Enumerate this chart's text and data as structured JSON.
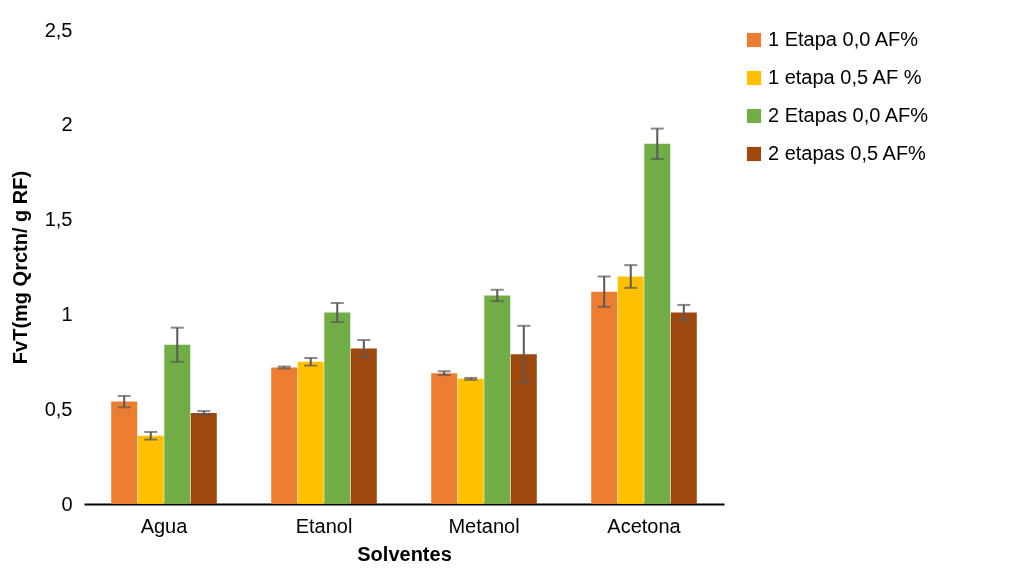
{
  "chart_data": {
    "type": "bar",
    "xlabel": "Solventes",
    "ylabel": "FvT(mg Qrctn/ g RF)",
    "categories": [
      "Agua",
      "Etanol",
      "Metanol",
      "Acetona"
    ],
    "series": [
      {
        "name": "1 Etapa 0,0 AF%",
        "color": "#ed7d31",
        "values": [
          0.54,
          0.72,
          0.69,
          1.12
        ],
        "errors": [
          0.03,
          0.005,
          0.01,
          0.08
        ]
      },
      {
        "name": "1 etapa 0,5 AF %",
        "color": "#ffc000",
        "values": [
          0.36,
          0.75,
          0.66,
          1.2
        ],
        "errors": [
          0.02,
          0.02,
          0.005,
          0.06
        ]
      },
      {
        "name": "2 Etapas  0,0 AF%",
        "color": "#70ad47",
        "values": [
          0.84,
          1.01,
          1.1,
          1.9
        ],
        "errors": [
          0.09,
          0.05,
          0.03,
          0.08
        ]
      },
      {
        "name": "2 etapas 0,5 AF%",
        "color": "#9e480e",
        "values": [
          0.48,
          0.82,
          0.79,
          1.01
        ],
        "errors": [
          0.01,
          0.045,
          0.15,
          0.04
        ]
      }
    ],
    "ylim": [
      0,
      2.5
    ],
    "yticks": [
      0,
      {
        "value": 0.5,
        "label": "0,5"
      },
      1,
      {
        "value": 1.5,
        "label": "1,5"
      },
      2,
      {
        "value": 2.5,
        "label": "2,5"
      }
    ],
    "grid": false,
    "legend": "right"
  }
}
